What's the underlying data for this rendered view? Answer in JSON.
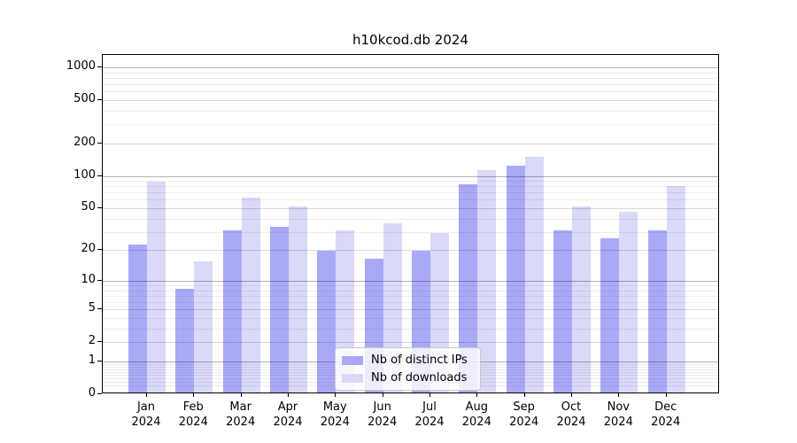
{
  "chart_data": {
    "type": "bar",
    "title": "h10kcod.db 2024",
    "categories": [
      "Jan",
      "Feb",
      "Mar",
      "Apr",
      "May",
      "Jun",
      "Jul",
      "Aug",
      "Sep",
      "Oct",
      "Nov",
      "Dec"
    ],
    "year_label": "2024",
    "series": [
      {
        "name": "Nb of distinct IPs",
        "color": "#a9a9f8",
        "values": [
          22,
          8,
          30,
          32,
          19,
          16,
          19,
          80,
          120,
          30,
          25,
          30
        ]
      },
      {
        "name": "Nb of downloads",
        "color": "#d9d9f8",
        "values": [
          85,
          15,
          60,
          50,
          30,
          35,
          28,
          110,
          145,
          50,
          45,
          78
        ]
      }
    ],
    "yscale": "log1p",
    "y_ticks": [
      1000,
      500,
      200,
      100,
      50,
      20,
      10,
      5,
      2,
      1,
      0
    ],
    "ylim": [
      0,
      1300
    ],
    "grid": true,
    "legend": {
      "position": "lower center"
    }
  },
  "colors": {
    "grid_decade": "rgba(0,0,0,0.30)",
    "grid_mid": "rgba(0,0,0,0.15)",
    "grid_minor": "rgba(0,0,0,0.07)",
    "spine": "#000000",
    "background": "#ffffff"
  }
}
